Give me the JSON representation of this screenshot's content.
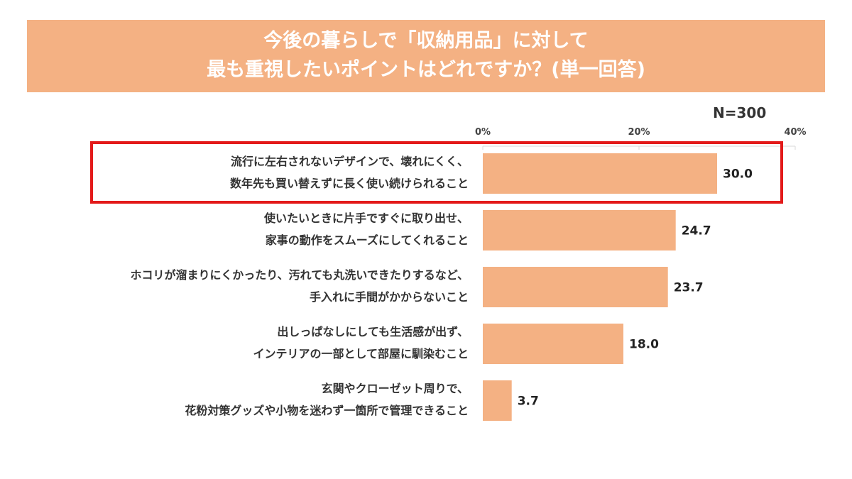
{
  "colors": {
    "bar": "#F4B183",
    "title_background": "#F4B183",
    "title_text": "#FFFFFF",
    "highlight_border": "#E31A1A",
    "gridline": "#D9D9D9"
  },
  "chart_data": {
    "type": "bar",
    "orientation": "horizontal",
    "title_lines": [
      "今後の暮らしで「収納用品」に対して",
      "最も重視したいポイントはどれですか？(単一回答)"
    ],
    "sample_size": "N=300",
    "xlim": [
      0,
      40
    ],
    "x_ticks": [
      0,
      20,
      40
    ],
    "x_tick_labels": [
      "0%",
      "20%",
      "40%"
    ],
    "grid": true,
    "categories": [
      [
        "流行に左右されないデザインで、壊れにくく、",
        "数年先も買い替えずに長く使い続けられること"
      ],
      [
        "使いたいときに片手ですぐに取り出せ、",
        "家事の動作をスムーズにしてくれること"
      ],
      [
        "ホコリが溜まりにくかったり、汚れても丸洗いできたりするなど、",
        "手入れに手間がかからないこと"
      ],
      [
        "出しっぱなしにしても生活感が出ず、",
        "インテリアの一部として部屋に馴染むこと"
      ],
      [
        "玄関やクローゼット周りで、",
        "花粉対策グッズや小物を迷わず一箇所で管理できること"
      ]
    ],
    "values": [
      30.0,
      24.7,
      23.7,
      18.0,
      3.7
    ],
    "value_labels": [
      "30.0",
      "24.7",
      "23.7",
      "18.0",
      "3.7"
    ],
    "highlighted_index": 0
  }
}
